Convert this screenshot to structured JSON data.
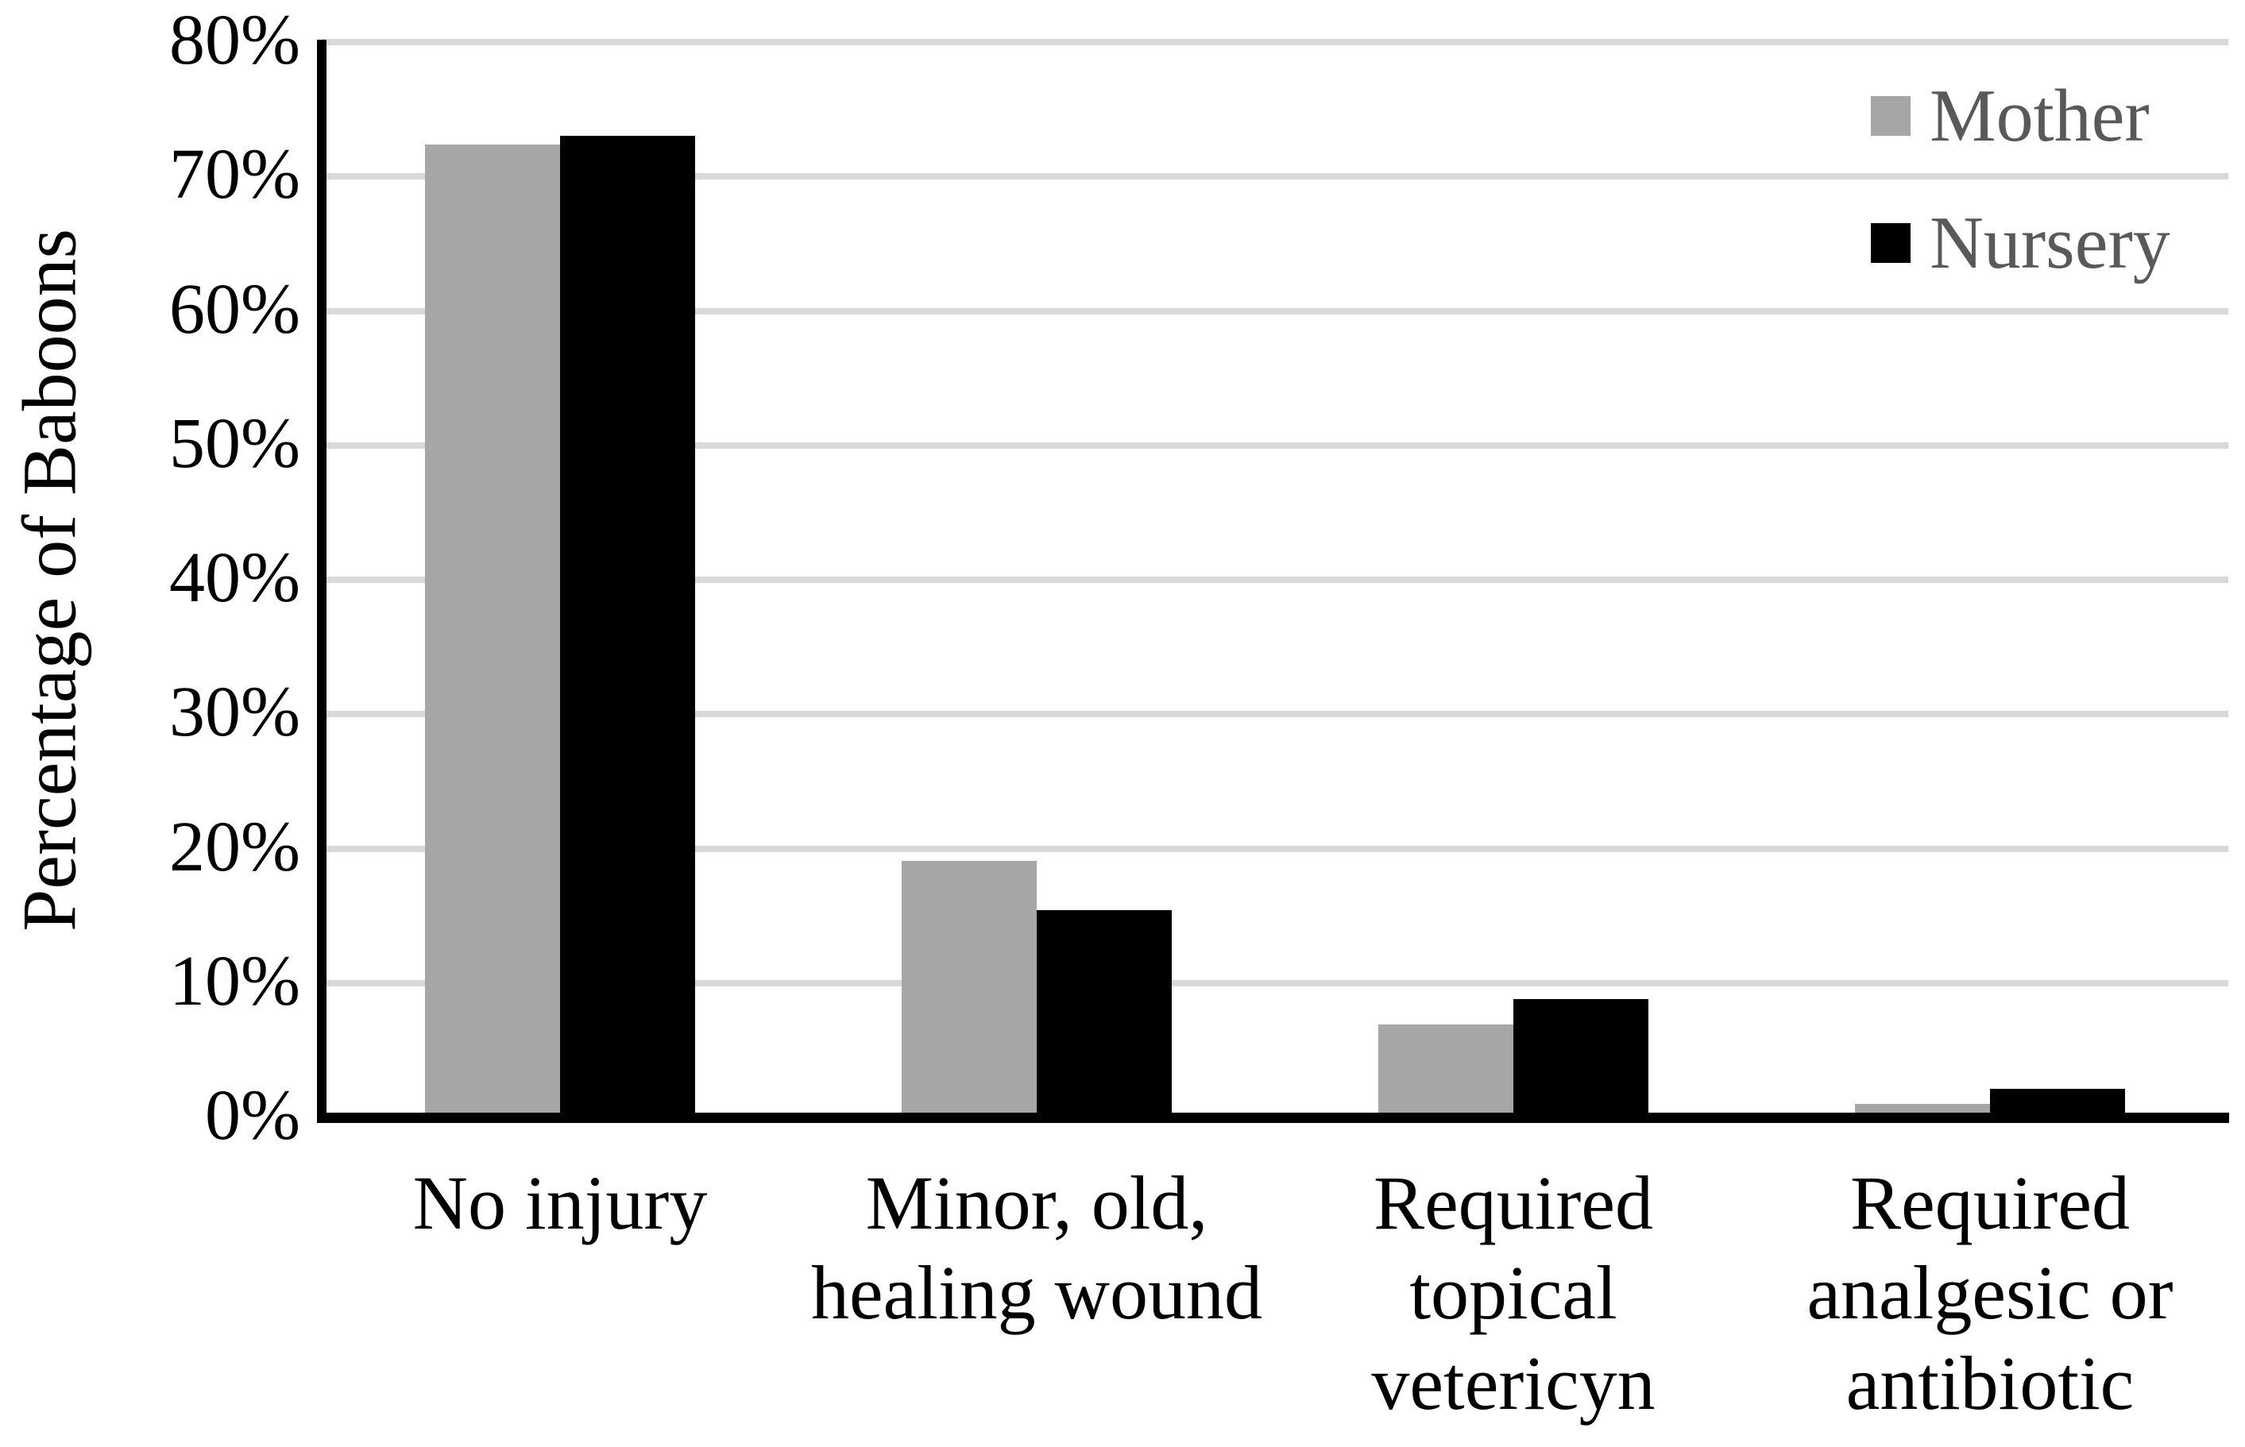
{
  "figure": {
    "background": "#ffffff"
  },
  "chart_data": {
    "type": "bar",
    "title": "",
    "xlabel": "",
    "ylabel": "Percentage of Baboons",
    "categories": [
      "No injury",
      "Minor, old, healing wound",
      "Required topical vetericyn",
      "Required analgesic or antibiotic"
    ],
    "category_lines": [
      [
        "No injury"
      ],
      [
        "Minor, old,",
        "healing wound"
      ],
      [
        "Required",
        "topical",
        "vetericyn"
      ],
      [
        "Required",
        "analgesic or",
        "antibiotic"
      ]
    ],
    "series": [
      {
        "name": "Mother",
        "color": "#a6a6a6",
        "values": [
          72.4,
          19.1,
          6.9,
          1.0
        ]
      },
      {
        "name": "Nursery",
        "color": "#000000",
        "values": [
          73.0,
          15.4,
          8.8,
          2.1
        ]
      }
    ],
    "value_unit": "%",
    "ylim": [
      0,
      80
    ],
    "ytick_step": 10,
    "ytick_labels": [
      "0%",
      "10%",
      "20%",
      "30%",
      "40%",
      "50%",
      "60%",
      "70%",
      "80%"
    ],
    "grid": true,
    "gridline_color": "#d9d9d9",
    "axis_color": "#000000",
    "tick_label_color": "#000000",
    "legend": {
      "position": "top-right",
      "entries": [
        "Mother",
        "Nursery"
      ],
      "text_color": "#595959"
    }
  }
}
